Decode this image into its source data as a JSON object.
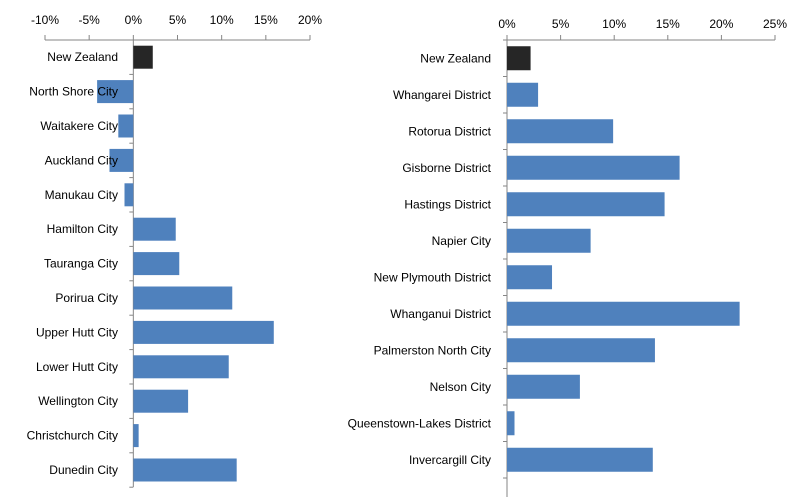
{
  "colors": {
    "bar": "#4F81BD",
    "highlight": "#262626",
    "axis": "#868686"
  },
  "chart_data": [
    {
      "type": "bar",
      "orientation": "horizontal",
      "title": "",
      "xlabel": "",
      "ylabel": "",
      "xlim": [
        -10,
        20
      ],
      "ticks": [
        "-10%",
        "-5%",
        "0%",
        "5%",
        "10%",
        "15%",
        "20%"
      ],
      "tick_values": [
        -10,
        -5,
        0,
        5,
        10,
        15,
        20
      ],
      "categories": [
        "New Zealand",
        "North Shore City",
        "Waitakere City",
        "Auckland City",
        "Manukau City",
        "Hamilton City",
        "Tauranga City",
        "Porirua City",
        "Upper Hutt City",
        "Lower Hutt City",
        "Wellington City",
        "Christchurch City",
        "Dunedin City"
      ],
      "values": [
        2.2,
        -4.1,
        -1.7,
        -2.7,
        -1.0,
        4.8,
        5.2,
        11.2,
        15.9,
        10.8,
        6.2,
        0.6,
        11.7
      ],
      "highlight_index": 0
    },
    {
      "type": "bar",
      "orientation": "horizontal",
      "title": "",
      "xlabel": "",
      "ylabel": "",
      "xlim": [
        0,
        25
      ],
      "ticks": [
        "0%",
        "5%",
        "10%",
        "15%",
        "20%",
        "25%"
      ],
      "tick_values": [
        0,
        5,
        10,
        15,
        20,
        25
      ],
      "categories": [
        "New Zealand",
        "Whangarei District",
        "Rotorua District",
        "Gisborne District",
        "Hastings District",
        "Napier City",
        "New Plymouth District",
        "Whanganui District",
        "Palmerston North City",
        "Nelson City",
        "Queenstown-Lakes District",
        "Invercargill City"
      ],
      "values": [
        2.2,
        2.9,
        9.9,
        16.1,
        14.7,
        7.8,
        4.2,
        21.7,
        13.8,
        6.8,
        0.7,
        13.6
      ],
      "highlight_index": 0
    }
  ]
}
